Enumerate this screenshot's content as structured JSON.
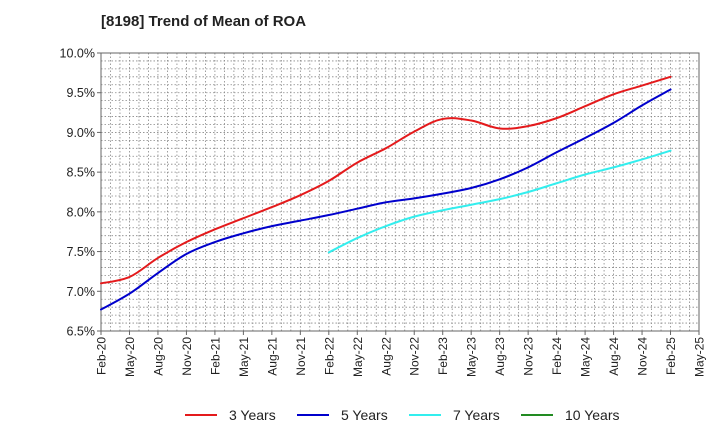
{
  "chart_data": {
    "type": "line",
    "title": "[8198]  Trend of Mean of ROA",
    "xlabel": "",
    "ylabel": "",
    "ylim": [
      6.5,
      10.0
    ],
    "y_ticks": [
      "6.5%",
      "7.0%",
      "7.5%",
      "8.0%",
      "8.5%",
      "9.0%",
      "9.5%",
      "10.0%"
    ],
    "y_tick_values": [
      6.5,
      7.0,
      7.5,
      8.0,
      8.5,
      9.0,
      9.5,
      10.0
    ],
    "x_range": [
      "2020-02",
      "2025-05"
    ],
    "x_ticks": [
      "Feb-20",
      "May-20",
      "Aug-20",
      "Nov-20",
      "Feb-21",
      "May-21",
      "Aug-21",
      "Nov-21",
      "Feb-22",
      "May-22",
      "Aug-22",
      "Nov-22",
      "Feb-23",
      "May-23",
      "Aug-23",
      "Nov-23",
      "Feb-24",
      "May-24",
      "Aug-24",
      "Nov-24",
      "Feb-25",
      "May-25"
    ],
    "grid": true,
    "legend_position": "bottom",
    "series": [
      {
        "name": "3 Years",
        "color": "#e41a1c",
        "x": [
          "Feb-20",
          "May-20",
          "Aug-20",
          "Nov-20",
          "Feb-21",
          "May-21",
          "Aug-21",
          "Nov-21",
          "Feb-22",
          "May-22",
          "Aug-22",
          "Nov-22",
          "Feb-23",
          "May-23",
          "Aug-23",
          "Nov-23",
          "Feb-24",
          "May-24",
          "Aug-24",
          "Nov-24",
          "Feb-25"
        ],
        "values": [
          7.1,
          7.18,
          7.42,
          7.62,
          7.78,
          7.92,
          8.06,
          8.21,
          8.39,
          8.62,
          8.8,
          9.01,
          9.17,
          9.15,
          9.05,
          9.08,
          9.18,
          9.33,
          9.48,
          9.59,
          9.7
        ]
      },
      {
        "name": "5 Years",
        "color": "#0000cc",
        "x": [
          "Feb-20",
          "May-20",
          "Aug-20",
          "Nov-20",
          "Feb-21",
          "May-21",
          "Aug-21",
          "Nov-21",
          "Feb-22",
          "May-22",
          "Aug-22",
          "Nov-22",
          "Feb-23",
          "May-23",
          "Aug-23",
          "Nov-23",
          "Feb-24",
          "May-24",
          "Aug-24",
          "Nov-24",
          "Feb-25"
        ],
        "values": [
          6.77,
          6.97,
          7.23,
          7.47,
          7.62,
          7.73,
          7.82,
          7.89,
          7.96,
          8.04,
          8.12,
          8.17,
          8.23,
          8.3,
          8.41,
          8.56,
          8.75,
          8.93,
          9.12,
          9.34,
          9.54
        ]
      },
      {
        "name": "7 Years",
        "color": "#33eeee",
        "x": [
          "Feb-22",
          "May-22",
          "Aug-22",
          "Nov-22",
          "Feb-23",
          "May-23",
          "Aug-23",
          "Nov-23",
          "Feb-24",
          "May-24",
          "Aug-24",
          "Nov-24",
          "Feb-25"
        ],
        "values": [
          7.49,
          7.67,
          7.82,
          7.94,
          8.02,
          8.09,
          8.16,
          8.25,
          8.36,
          8.47,
          8.56,
          8.66,
          8.77
        ]
      },
      {
        "name": "10 Years",
        "color": "#228b22",
        "x": [],
        "values": []
      }
    ]
  }
}
